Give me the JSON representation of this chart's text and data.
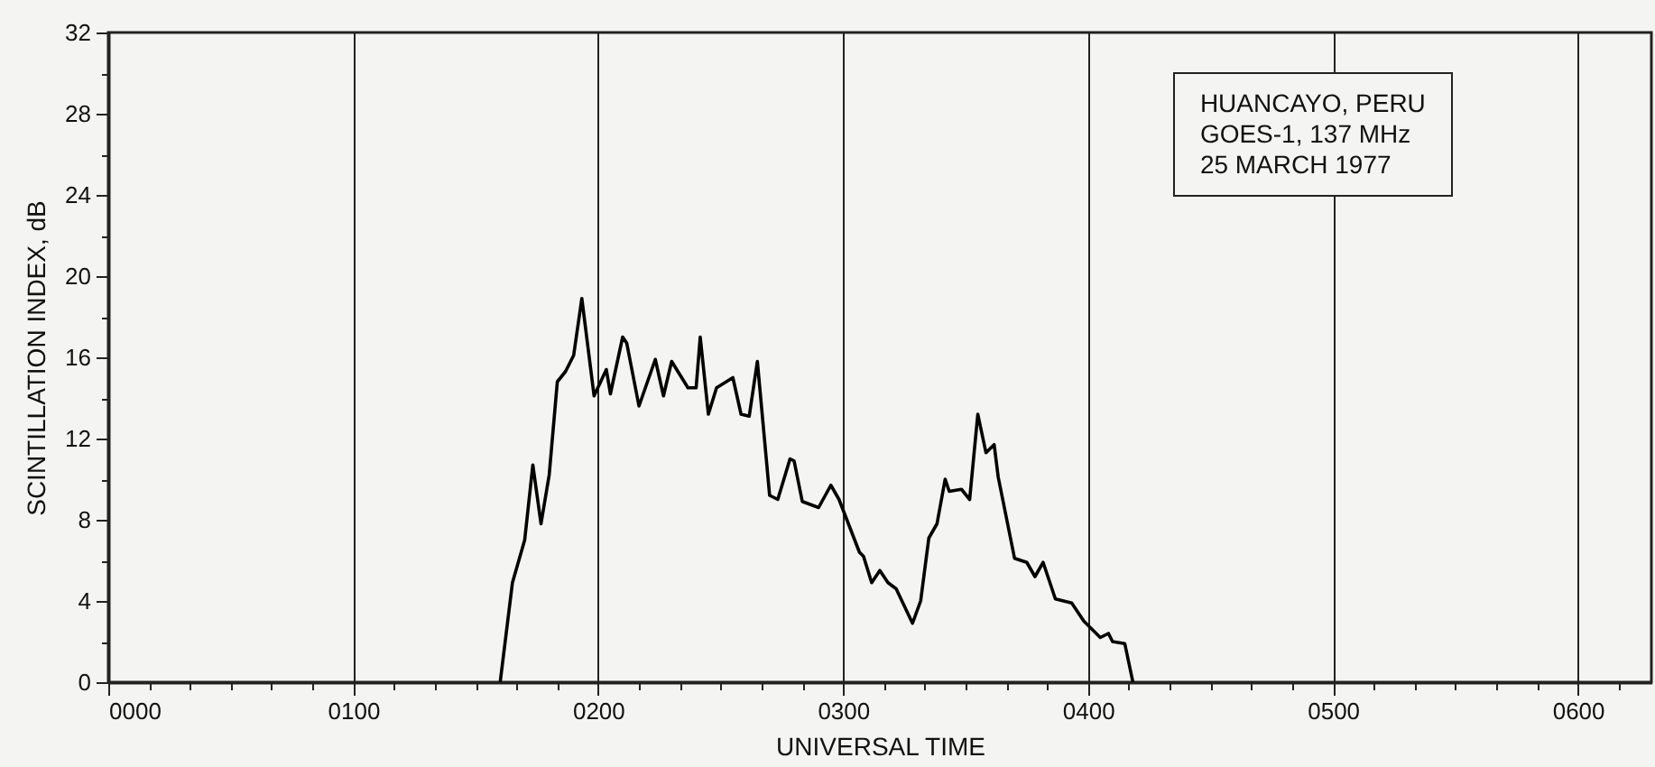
{
  "chart_data": {
    "type": "line",
    "xlabel": "UNIVERSAL TIME",
    "ylabel": "SCINTILLATION INDEX, dB",
    "annotations": [
      "HUANCAYO, PERU",
      "GOES-1, 137 MHz",
      "25 MARCH 1977"
    ],
    "x": [
      "1977-03-25T01:36",
      "1977-03-25T01:39",
      "1977-03-25T01:42",
      "1977-03-25T01:44",
      "1977-03-25T01:46",
      "1977-03-25T01:48",
      "1977-03-25T01:50",
      "1977-03-25T01:52",
      "1977-03-25T01:54",
      "1977-03-25T01:56",
      "1977-03-25T01:59",
      "1977-03-25T02:02",
      "1977-03-25T02:03",
      "1977-03-25T02:06",
      "1977-03-25T02:07",
      "1977-03-25T02:10",
      "1977-03-25T02:14",
      "1977-03-25T02:16",
      "1977-03-25T02:18",
      "1977-03-25T02:22",
      "1977-03-25T02:24",
      "1977-03-25T02:25",
      "1977-03-25T02:27",
      "1977-03-25T02:29",
      "1977-03-25T02:33",
      "1977-03-25T02:35",
      "1977-03-25T02:37",
      "1977-03-25T02:39",
      "1977-03-25T02:42",
      "1977-03-25T02:44",
      "1977-03-25T02:47",
      "1977-03-25T02:48",
      "1977-03-25T02:50",
      "1977-03-25T02:54",
      "1977-03-25T02:57",
      "1977-03-25T02:59",
      "1977-03-25T03:04",
      "1977-03-25T03:05",
      "1977-03-25T03:07",
      "1977-03-25T03:09",
      "1977-03-25T03:11",
      "1977-03-25T03:13",
      "1977-03-25T03:17",
      "1977-03-25T03:19",
      "1977-03-25T03:21",
      "1977-03-25T03:23",
      "1977-03-25T03:25",
      "1977-03-25T03:26",
      "1977-03-25T03:29",
      "1977-03-25T03:31",
      "1977-03-25T03:33",
      "1977-03-25T03:35",
      "1977-03-25T03:37",
      "1977-03-25T03:38",
      "1977-03-25T03:42",
      "1977-03-25T03:45",
      "1977-03-25T03:47",
      "1977-03-25T03:49",
      "1977-03-25T03:52",
      "1977-03-25T03:56",
      "1977-03-25T03:59",
      "1977-03-25T04:03",
      "1977-03-25T04:05",
      "1977-03-25T04:06",
      "1977-03-25T04:09",
      "1977-03-25T04:11"
    ],
    "values": [
      0,
      4.9,
      7.0,
      10.7,
      7.8,
      10.2,
      14.8,
      15.3,
      16.1,
      18.9,
      14.1,
      15.4,
      14.2,
      17.0,
      16.7,
      13.6,
      15.9,
      14.1,
      15.8,
      14.5,
      14.5,
      17.0,
      13.2,
      14.5,
      15.0,
      13.2,
      13.1,
      15.8,
      9.2,
      9.0,
      11.0,
      10.9,
      8.9,
      8.6,
      9.7,
      9.0,
      6.4,
      6.2,
      4.9,
      5.5,
      4.9,
      4.6,
      2.9,
      4.0,
      7.1,
      7.8,
      10.0,
      9.4,
      9.5,
      9.0,
      13.2,
      11.3,
      11.7,
      10.1,
      6.1,
      5.9,
      5.2,
      5.9,
      4.1,
      3.9,
      3.0,
      2.2,
      2.4,
      2.0,
      1.9,
      0
    ],
    "color": "#000000",
    "line_style": "solid",
    "xlim": [
      "1977-03-25T00:00",
      "1977-03-25T06:18"
    ],
    "ylim": [
      0,
      32
    ],
    "xticks": [
      {
        "value": "1977-03-25T00:00",
        "label": "0000"
      },
      {
        "value": "1977-03-25T00:10",
        "label": null
      },
      {
        "value": "1977-03-25T00:20",
        "label": null
      },
      {
        "value": "1977-03-25T00:30",
        "label": null
      },
      {
        "value": "1977-03-25T00:40",
        "label": null
      },
      {
        "value": "1977-03-25T00:50",
        "label": null
      },
      {
        "value": "1977-03-25T01:00",
        "label": "0100"
      },
      {
        "value": "1977-03-25T01:10",
        "label": null
      },
      {
        "value": "1977-03-25T01:20",
        "label": null
      },
      {
        "value": "1977-03-25T01:30",
        "label": null
      },
      {
        "value": "1977-03-25T01:40",
        "label": null
      },
      {
        "value": "1977-03-25T01:50",
        "label": null
      },
      {
        "value": "1977-03-25T02:00",
        "label": "0200"
      },
      {
        "value": "1977-03-25T02:10",
        "label": null
      },
      {
        "value": "1977-03-25T02:20",
        "label": null
      },
      {
        "value": "1977-03-25T02:30",
        "label": null
      },
      {
        "value": "1977-03-25T02:40",
        "label": null
      },
      {
        "value": "1977-03-25T02:50",
        "label": null
      },
      {
        "value": "1977-03-25T03:00",
        "label": "0300"
      },
      {
        "value": "1977-03-25T03:10",
        "label": null
      },
      {
        "value": "1977-03-25T03:20",
        "label": null
      },
      {
        "value": "1977-03-25T03:30",
        "label": null
      },
      {
        "value": "1977-03-25T03:40",
        "label": null
      },
      {
        "value": "1977-03-25T03:50",
        "label": null
      },
      {
        "value": "1977-03-25T04:00",
        "label": "0400"
      },
      {
        "value": "1977-03-25T04:10",
        "label": null
      },
      {
        "value": "1977-03-25T04:20",
        "label": null
      },
      {
        "value": "1977-03-25T04:30",
        "label": null
      },
      {
        "value": "1977-03-25T04:40",
        "label": null
      },
      {
        "value": "1977-03-25T04:50",
        "label": null
      },
      {
        "value": "1977-03-25T05:00",
        "label": "0500"
      },
      {
        "value": "1977-03-25T05:10",
        "label": null
      },
      {
        "value": "1977-03-25T05:20",
        "label": null
      },
      {
        "value": "1977-03-25T05:30",
        "label": null
      },
      {
        "value": "1977-03-25T05:40",
        "label": null
      },
      {
        "value": "1977-03-25T05:50",
        "label": null
      },
      {
        "value": "1977-03-25T06:00",
        "label": "0600"
      },
      {
        "value": "1977-03-25T06:10",
        "label": null
      }
    ],
    "yticks": [
      0,
      {
        "value": 2,
        "label": null
      },
      4,
      {
        "value": 6,
        "label": null
      },
      8,
      {
        "value": 10,
        "label": null
      },
      12,
      {
        "value": 14,
        "label": null
      },
      16,
      {
        "value": 18,
        "label": null
      },
      20,
      {
        "value": 22,
        "label": null
      },
      24,
      {
        "value": 26,
        "label": null
      },
      28,
      {
        "value": 30,
        "label": null
      },
      32
    ],
    "grid": "x"
  }
}
